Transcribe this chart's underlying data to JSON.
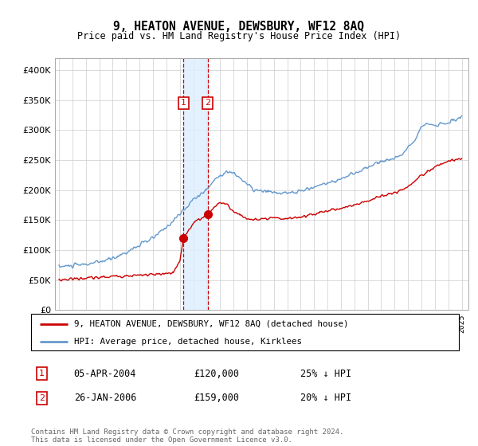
{
  "title": "9, HEATON AVENUE, DEWSBURY, WF12 8AQ",
  "subtitle": "Price paid vs. HM Land Registry's House Price Index (HPI)",
  "legend_line1": "9, HEATON AVENUE, DEWSBURY, WF12 8AQ (detached house)",
  "legend_line2": "HPI: Average price, detached house, Kirklees",
  "transaction1_date": "05-APR-2004",
  "transaction1_price": "£120,000",
  "transaction1_hpi": "25% ↓ HPI",
  "transaction2_date": "26-JAN-2006",
  "transaction2_price": "£159,000",
  "transaction2_hpi": "20% ↓ HPI",
  "footer": "Contains HM Land Registry data © Crown copyright and database right 2024.\nThis data is licensed under the Open Government Licence v3.0.",
  "hpi_color": "#6699cc",
  "price_color": "#cc0000",
  "transaction_color": "#cc0000",
  "shading_color": "#ddeeff",
  "ylim": [
    0,
    420000
  ],
  "yticks": [
    0,
    50000,
    100000,
    150000,
    200000,
    250000,
    300000,
    350000,
    400000
  ],
  "ytick_labels": [
    "£0",
    "£50K",
    "£100K",
    "£150K",
    "£200K",
    "£250K",
    "£300K",
    "£350K",
    "£400K"
  ],
  "transaction1_year": 2004.27,
  "transaction2_year": 2006.08,
  "transaction1_price_val": 120000,
  "transaction2_price_val": 159000
}
